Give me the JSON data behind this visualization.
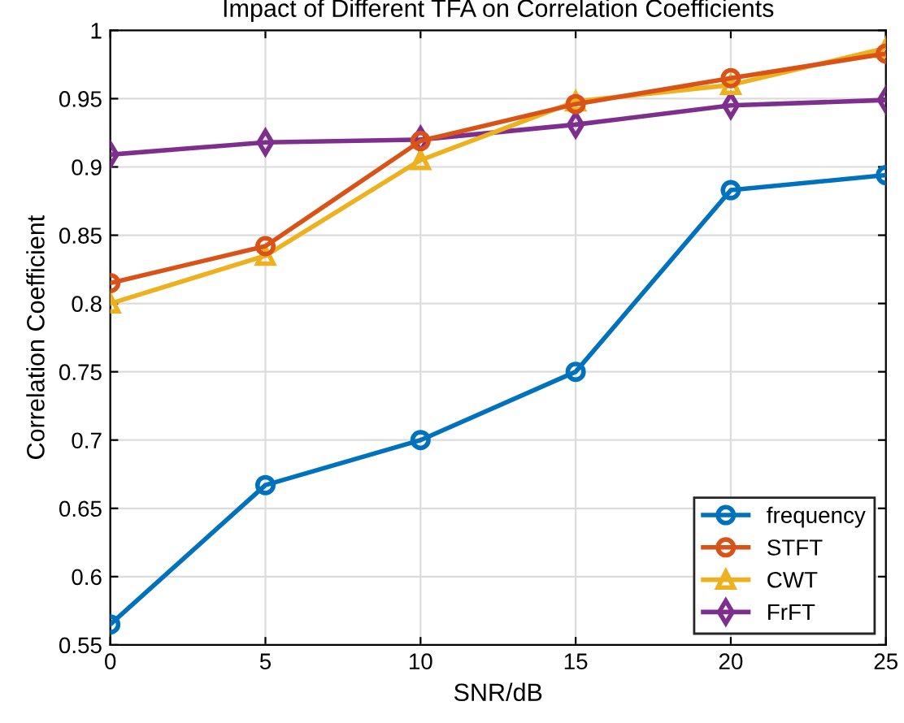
{
  "chart_data": {
    "type": "line",
    "title": "Impact of Different TFA on Correlation Coefficients",
    "xlabel": "SNR/dB",
    "ylabel": "Correlation Coefficient",
    "x": [
      0,
      5,
      10,
      15,
      20,
      25
    ],
    "xlim": [
      0,
      25
    ],
    "xticks": [
      0,
      5,
      10,
      15,
      20,
      25
    ],
    "ylim": [
      0.55,
      1
    ],
    "yticks": [
      0.55,
      0.6,
      0.65,
      0.7,
      0.75,
      0.8,
      0.85,
      0.9,
      0.95,
      1
    ],
    "grid": true,
    "legend": "bottom right",
    "line_style": "solid",
    "series": [
      {
        "name": "frequency",
        "color": "#0072bd",
        "marker": "circle",
        "values": [
          0.565,
          0.667,
          0.7,
          0.75,
          0.883,
          0.894
        ]
      },
      {
        "name": "STFT",
        "color": "#d95319",
        "marker": "circle",
        "values": [
          0.815,
          0.842,
          0.919,
          0.946,
          0.965,
          0.983
        ]
      },
      {
        "name": "CWT",
        "color": "#edb120",
        "marker": "triangle",
        "values": [
          0.8,
          0.835,
          0.905,
          0.948,
          0.96,
          0.987
        ]
      },
      {
        "name": "FrFT",
        "color": "#7e2f8e",
        "marker": "diamond",
        "values": [
          0.909,
          0.918,
          0.92,
          0.931,
          0.945,
          0.949
        ]
      }
    ]
  }
}
